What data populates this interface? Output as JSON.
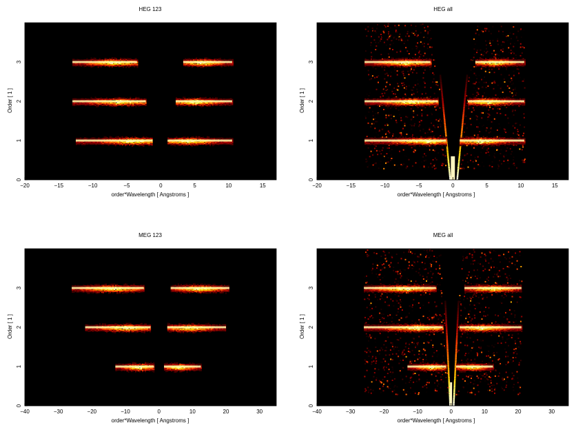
{
  "figure": {
    "panels": [
      {
        "id": "heg-123",
        "title": "HEG 123",
        "xlabel": "order*Wavelength [ Angstroms ]",
        "ylabel": "Order [ 1 ]"
      },
      {
        "id": "heg-all",
        "title": "HEG all",
        "xlabel": "order*Wavelength [ Angstroms ]",
        "ylabel": "Order [ 1 ]"
      },
      {
        "id": "meg-123",
        "title": "MEG 123",
        "xlabel": "order*Wavelength [ Angstroms ]",
        "ylabel": "Order [ 1 ]"
      },
      {
        "id": "meg-all",
        "title": "MEG all",
        "xlabel": "order*Wavelength [ Angstroms ]",
        "ylabel": "Order [ 1 ]"
      }
    ]
  },
  "chart_data": [
    {
      "type": "heatmap",
      "title": "HEG 123",
      "xlabel": "order*Wavelength [ Angstroms ]",
      "ylabel": "Order [ 1 ]",
      "xlim": [
        -20,
        17
      ],
      "ylim": [
        0,
        4
      ],
      "xticks": [
        -20,
        -15,
        -10,
        -5,
        0,
        5,
        10,
        15
      ],
      "yticks": [
        0,
        1,
        2,
        3
      ],
      "background": "#000000",
      "bands": [
        {
          "order": 1,
          "segments": [
            [
              -12.5,
              -1.2
            ],
            [
              1.0,
              10.5
            ]
          ],
          "peak": [
            -4,
            4
          ]
        },
        {
          "order": 2,
          "segments": [
            [
              -13.0,
              -2.2
            ],
            [
              2.2,
              10.5
            ]
          ],
          "peak": [
            -6,
            5
          ]
        },
        {
          "order": 3,
          "segments": [
            [
              -13.0,
              -3.5
            ],
            [
              3.3,
              10.5
            ]
          ],
          "peak": [
            -7,
            6
          ]
        }
      ],
      "central_v": false
    },
    {
      "type": "heatmap",
      "title": "HEG all",
      "xlabel": "order*Wavelength [ Angstroms ]",
      "ylabel": "Order [ 1 ]",
      "xlim": [
        -20,
        17
      ],
      "ylim": [
        0,
        4
      ],
      "xticks": [
        -20,
        -15,
        -10,
        -5,
        0,
        5,
        10,
        15
      ],
      "yticks": [
        0,
        1,
        2,
        3
      ],
      "background": "#000000",
      "bands": [
        {
          "order": 1,
          "segments": [
            [
              -13.0,
              -1.0
            ],
            [
              1.0,
              10.5
            ]
          ],
          "peak": [
            -4,
            4
          ]
        },
        {
          "order": 2,
          "segments": [
            [
              -13.0,
              -2.2
            ],
            [
              2.2,
              10.5
            ]
          ],
          "peak": [
            -6,
            5
          ]
        },
        {
          "order": 3,
          "segments": [
            [
              -13.0,
              -3.3
            ],
            [
              3.3,
              10.5
            ]
          ],
          "peak": [
            -7,
            6
          ]
        }
      ],
      "central_v": true,
      "noise_region": [
        -13.0,
        10.5
      ]
    },
    {
      "type": "heatmap",
      "title": "MEG 123",
      "xlabel": "order*Wavelength [ Angstroms ]",
      "ylabel": "Order [ 1 ]",
      "xlim": [
        -40,
        35
      ],
      "ylim": [
        0,
        4
      ],
      "xticks": [
        -40,
        -30,
        -20,
        -10,
        0,
        10,
        20,
        30
      ],
      "yticks": [
        0,
        1,
        2,
        3
      ],
      "background": "#000000",
      "bands": [
        {
          "order": 1,
          "segments": [
            [
              -13.0,
              -1.5
            ],
            [
              1.5,
              12.5
            ]
          ],
          "peak": [
            -6,
            6
          ]
        },
        {
          "order": 2,
          "segments": [
            [
              -22.0,
              -2.5
            ],
            [
              2.5,
              20.0
            ]
          ],
          "peak": [
            -10,
            9
          ]
        },
        {
          "order": 3,
          "segments": [
            [
              -26.0,
              -4.5
            ],
            [
              3.5,
              21.0
            ]
          ],
          "peak": [
            -14,
            12
          ]
        }
      ],
      "central_v": false
    },
    {
      "type": "heatmap",
      "title": "MEG all",
      "xlabel": "order*Wavelength [ Angstroms ]",
      "ylabel": "Order [ 1 ]",
      "xlim": [
        -40,
        35
      ],
      "ylim": [
        0,
        4
      ],
      "xticks": [
        -40,
        -30,
        -20,
        -10,
        0,
        10,
        20,
        30
      ],
      "yticks": [
        0,
        1,
        2,
        3
      ],
      "background": "#000000",
      "bands": [
        {
          "order": 1,
          "segments": [
            [
              -13.0,
              -1.5
            ],
            [
              1.5,
              12.5
            ]
          ],
          "peak": [
            -6,
            6
          ]
        },
        {
          "order": 2,
          "segments": [
            [
              -26.0,
              -2.5
            ],
            [
              2.5,
              21.0
            ]
          ],
          "peak": [
            -10,
            9
          ]
        },
        {
          "order": 3,
          "segments": [
            [
              -26.0,
              -4.5
            ],
            [
              4.0,
              21.0
            ]
          ],
          "peak": [
            -14,
            12
          ]
        }
      ],
      "central_v": true,
      "noise_region": [
        -26.0,
        21.0
      ]
    }
  ]
}
